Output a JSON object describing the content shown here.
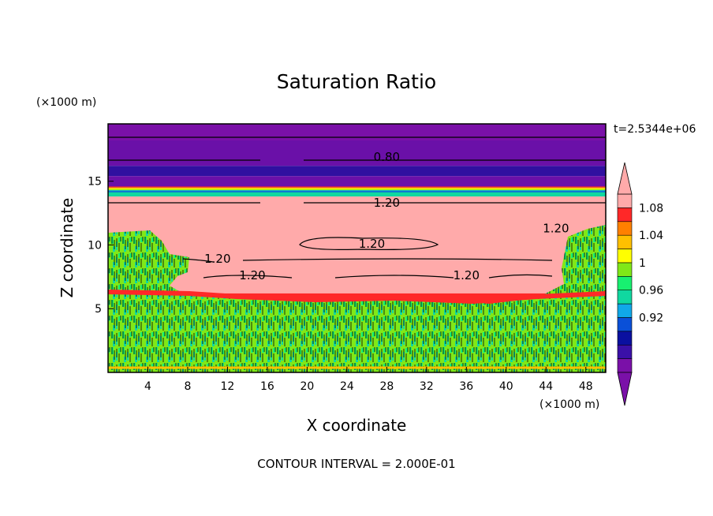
{
  "chart_data": {
    "type": "heatmap",
    "title": "Saturation Ratio",
    "xlabel": "X coordinate",
    "ylabel": "Z coordinate",
    "x_units": "(×1000 m)",
    "y_units": "(×1000 m)",
    "time_label": "t=2.5344e+06",
    "footer": "CONTOUR INTERVAL = 2.000E-01",
    "xlim": [
      0,
      50
    ],
    "ylim": [
      0,
      19.5
    ],
    "x_ticks": [
      "4",
      "8",
      "12",
      "16",
      "20",
      "24",
      "28",
      "32",
      "36",
      "40",
      "44",
      "48"
    ],
    "y_ticks": [
      "5",
      "10",
      "15"
    ],
    "colorbar": {
      "labels": [
        "1.08",
        "1.04",
        "1",
        "0.96",
        "0.92"
      ],
      "colors": [
        "#7a10a8",
        "#3a10a8",
        "#0a10a0",
        "#0a50d8",
        "#10a8e8",
        "#10d8a0",
        "#18f070",
        "#80e818",
        "#ffff00",
        "#ffc000",
        "#ff8000",
        "#ff2828",
        "#ffaaaa"
      ],
      "extend": "both"
    },
    "bands": [
      {
        "z_top": 19.5,
        "z_bottom": 18.2,
        "value": 0.7,
        "color": "#7a10a8"
      },
      {
        "z_top": 18.2,
        "z_bottom": 16.2,
        "value": 0.8,
        "color": "#6a10a8"
      },
      {
        "z_top": 16.2,
        "z_bottom": 15.4,
        "value": 0.88,
        "color": "#3010a0"
      },
      {
        "z_top": 15.4,
        "z_bottom": 14.4,
        "value": 0.91,
        "color": "#6a10a8"
      },
      {
        "z_top": 14.4,
        "z_bottom": 13.8,
        "value": 1.0,
        "color": "#10d8a0"
      },
      {
        "z_top": 13.8,
        "z_bottom": 6.2,
        "value": 1.2,
        "color": "#ffaaaa"
      },
      {
        "z_top": 6.2,
        "z_bottom": 5.0,
        "value": 1.08,
        "color": "#ff2828"
      },
      {
        "z_top": 5.0,
        "z_bottom": 0,
        "value": 1.0,
        "color": "#80e818"
      }
    ],
    "contour_labels": [
      {
        "text": "0.80",
        "x": 28,
        "z": 16.9
      },
      {
        "text": "1.20",
        "x": 28,
        "z": 13.3
      },
      {
        "text": "1.20",
        "x": 45,
        "z": 11.3
      },
      {
        "text": "1.20",
        "x": 11,
        "z": 8.9
      },
      {
        "text": "1.20",
        "x": 14.5,
        "z": 7.6
      },
      {
        "text": "1.20",
        "x": 26.5,
        "z": 10.1
      },
      {
        "text": "1.20",
        "x": 36,
        "z": 7.6
      }
    ]
  }
}
